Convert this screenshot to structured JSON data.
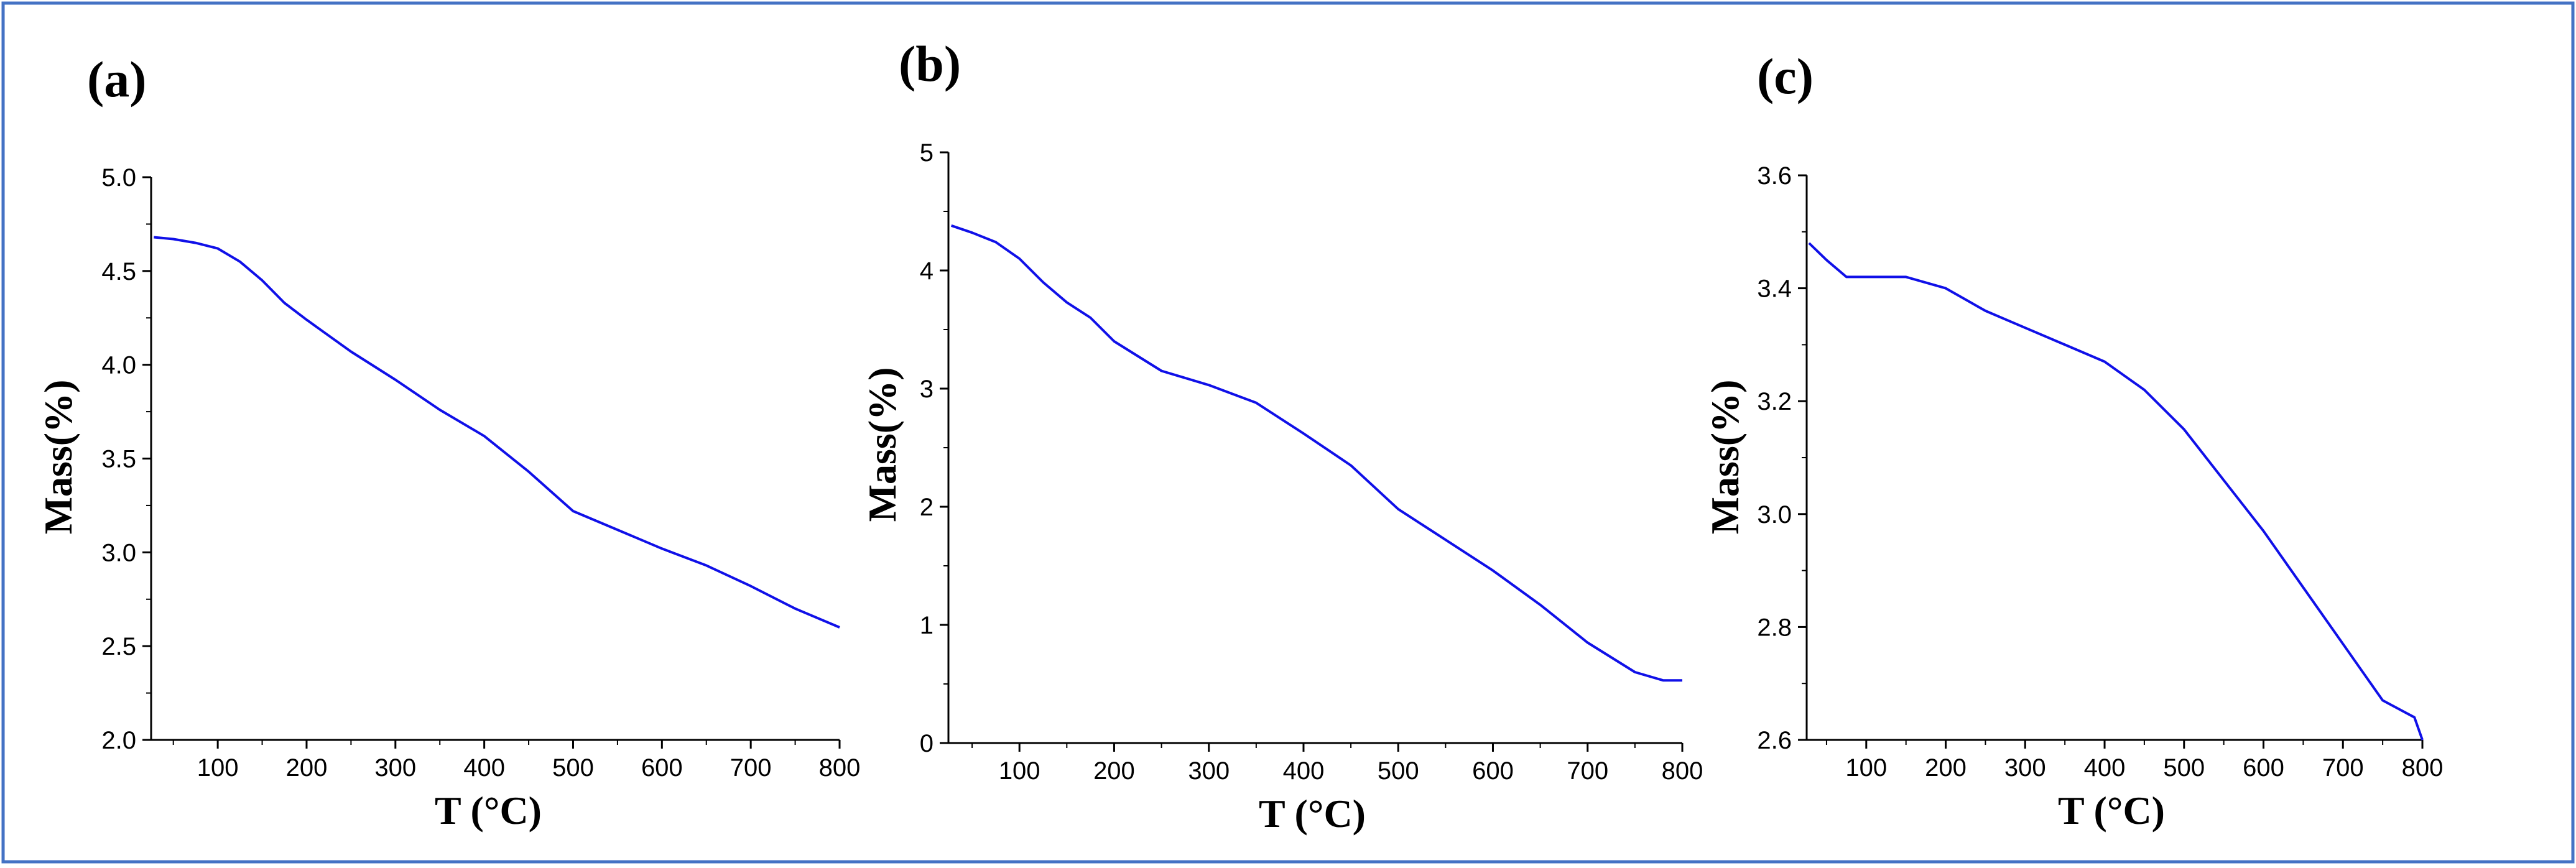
{
  "colors": {
    "frame": "#4472C4",
    "line": "#1010E8",
    "axis": "#000000"
  },
  "chart_data": [
    {
      "type": "line",
      "panel_label": "(a)",
      "xlabel": "T (°C)",
      "ylabel": "Mass(%)",
      "xlim": [
        25,
        800
      ],
      "ylim": [
        2.0,
        5.0
      ],
      "xticks": [
        100,
        200,
        300,
        400,
        500,
        600,
        700,
        800
      ],
      "yticks": [
        2.0,
        2.5,
        3.0,
        3.5,
        4.0,
        4.5,
        5.0
      ],
      "ytick_labels": [
        "2.0",
        "2.5",
        "3.0",
        "3.5",
        "4.0",
        "4.5",
        "5.0"
      ],
      "series": [
        {
          "name": "Mass",
          "x": [
            28,
            50,
            75,
            100,
            125,
            150,
            175,
            200,
            250,
            300,
            350,
            400,
            450,
            500,
            550,
            600,
            650,
            700,
            750,
            800
          ],
          "y": [
            4.68,
            4.67,
            4.65,
            4.62,
            4.55,
            4.45,
            4.33,
            4.24,
            4.07,
            3.92,
            3.76,
            3.62,
            3.43,
            3.22,
            3.12,
            3.02,
            2.93,
            2.82,
            2.7,
            2.6
          ]
        }
      ]
    },
    {
      "type": "line",
      "panel_label": "(b)",
      "xlabel": "T (°C)",
      "ylabel": "Mass(%)",
      "xlim": [
        25,
        800
      ],
      "ylim": [
        0,
        5
      ],
      "xticks": [
        100,
        200,
        300,
        400,
        500,
        600,
        700,
        800
      ],
      "yticks": [
        0,
        1,
        2,
        3,
        4,
        5
      ],
      "ytick_labels": [
        "0",
        "1",
        "2",
        "3",
        "4",
        "5"
      ],
      "series": [
        {
          "name": "Mass",
          "x": [
            28,
            50,
            75,
            100,
            125,
            150,
            175,
            200,
            250,
            300,
            350,
            400,
            450,
            500,
            550,
            600,
            650,
            700,
            750,
            780,
            800
          ],
          "y": [
            4.38,
            4.32,
            4.24,
            4.1,
            3.9,
            3.73,
            3.6,
            3.4,
            3.15,
            3.03,
            2.88,
            2.62,
            2.35,
            1.98,
            1.72,
            1.46,
            1.17,
            0.85,
            0.6,
            0.53,
            0.53
          ]
        }
      ]
    },
    {
      "type": "line",
      "panel_label": "(c)",
      "xlabel": "T (°C)",
      "ylabel": "Mass(%)",
      "xlim": [
        25,
        800
      ],
      "ylim": [
        2.6,
        3.6
      ],
      "xticks": [
        100,
        200,
        300,
        400,
        500,
        600,
        700,
        800
      ],
      "yticks": [
        2.6,
        2.8,
        3.0,
        3.2,
        3.4,
        3.6
      ],
      "ytick_labels": [
        "2.6",
        "2.8",
        "3.0",
        "3.2",
        "3.4",
        "3.6"
      ],
      "series": [
        {
          "name": "Mass",
          "x": [
            28,
            50,
            75,
            100,
            150,
            200,
            250,
            300,
            350,
            400,
            450,
            500,
            550,
            600,
            650,
            700,
            750,
            790,
            800
          ],
          "y": [
            3.48,
            3.45,
            3.42,
            3.42,
            3.42,
            3.4,
            3.36,
            3.33,
            3.3,
            3.27,
            3.22,
            3.15,
            3.06,
            2.97,
            2.87,
            2.77,
            2.67,
            2.64,
            2.6
          ]
        }
      ]
    }
  ]
}
